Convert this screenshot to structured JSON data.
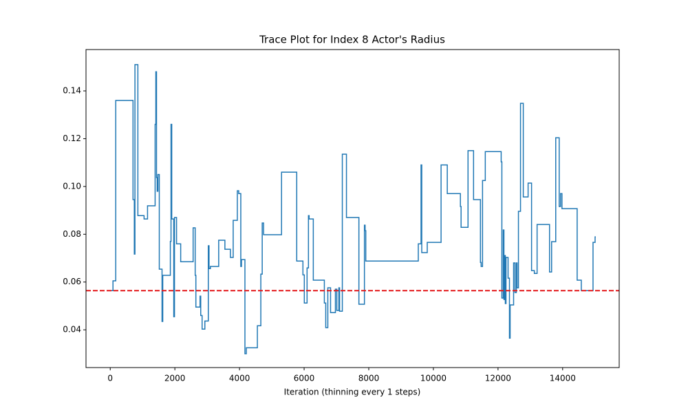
{
  "chart_data": {
    "type": "line",
    "title": "Trace Plot for Index 8 Actor's Radius",
    "x_label": "Iteration (thinning every 1 steps)",
    "step": "post",
    "x": [
      0,
      85,
      171,
      705,
      745,
      765,
      855,
      1047,
      1154,
      1389,
      1411,
      1432,
      1453,
      1475,
      1518,
      1603,
      1625,
      1860,
      1881,
      1903,
      1966,
      1988,
      2052,
      2180,
      2565,
      2629,
      2650,
      2779,
      2800,
      2843,
      2928,
      3035,
      3057,
      3099,
      3356,
      3548,
      3719,
      3805,
      3933,
      3976,
      4040,
      4061,
      4168,
      4211,
      4553,
      4660,
      4703,
      4745,
      5301,
      5771,
      5963,
      6006,
      6091,
      6134,
      6155,
      6284,
      6626,
      6669,
      6733,
      6818,
      6968,
      7011,
      7075,
      7097,
      7182,
      7310,
      7695,
      7866,
      7887,
      7908,
      9533,
      9618,
      9640,
      9810,
      10238,
      10430,
      10836,
      10857,
      11072,
      11243,
      11456,
      11478,
      11521,
      11606,
      12098,
      12119,
      12162,
      12183,
      12205,
      12226,
      12247,
      12311,
      12354,
      12375,
      12482,
      12525,
      12567,
      12589,
      12632,
      12696,
      12782,
      12931,
      13038,
      13124,
      13209,
      13594,
      13658,
      13786,
      13893,
      13936,
      13979,
      14449,
      14577,
      14940,
      15004,
      15025
    ],
    "series": [
      {
        "name": "trace",
        "color": "#1f77b4",
        "values": [
          0.0564,
          0.0605,
          0.136,
          0.0945,
          0.0717,
          0.151,
          0.0878,
          0.0864,
          0.0919,
          0.126,
          0.148,
          0.1037,
          0.098,
          0.105,
          0.0654,
          0.0435,
          0.0628,
          0.077,
          0.126,
          0.0864,
          0.0455,
          0.087,
          0.076,
          0.0685,
          0.0827,
          0.0628,
          0.0495,
          0.0541,
          0.046,
          0.0403,
          0.0437,
          0.0752,
          0.0656,
          0.0665,
          0.0775,
          0.0737,
          0.0703,
          0.0858,
          0.0982,
          0.097,
          0.0665,
          0.0694,
          0.03,
          0.0325,
          0.0417,
          0.0633,
          0.0847,
          0.0798,
          0.106,
          0.0688,
          0.063,
          0.0512,
          0.0659,
          0.0878,
          0.0864,
          0.0608,
          0.0512,
          0.0409,
          0.0576,
          0.0472,
          0.057,
          0.0481,
          0.0576,
          0.0478,
          0.1135,
          0.087,
          0.0507,
          0.0838,
          0.0815,
          0.0688,
          0.076,
          0.109,
          0.0723,
          0.0766,
          0.109,
          0.097,
          0.0916,
          0.0829,
          0.115,
          0.0945,
          0.0682,
          0.0665,
          0.1025,
          0.1146,
          0.1103,
          0.0533,
          0.0818,
          0.0527,
          0.0711,
          0.051,
          0.0703,
          0.0616,
          0.0365,
          0.0504,
          0.068,
          0.0556,
          0.068,
          0.0576,
          0.0896,
          0.1348,
          0.0956,
          0.1014,
          0.0648,
          0.0636,
          0.0841,
          0.0642,
          0.0769,
          0.1204,
          0.0916,
          0.097,
          0.0907,
          0.0608,
          0.0564,
          0.0766,
          0.0789,
          0.0789
        ]
      }
    ],
    "hline": {
      "value": 0.0564,
      "color": "#e41a1c"
    },
    "xlim": [
      -750,
      15750
    ],
    "xticks": [
      0,
      2000,
      4000,
      6000,
      8000,
      10000,
      12000,
      14000
    ],
    "ylim": [
      0.0242,
      0.1573
    ],
    "yticks": [
      0.04,
      0.06,
      0.08,
      {
        "value": 0.1,
        "label": "0.10"
      },
      0.12,
      0.14
    ],
    "grid": false
  }
}
